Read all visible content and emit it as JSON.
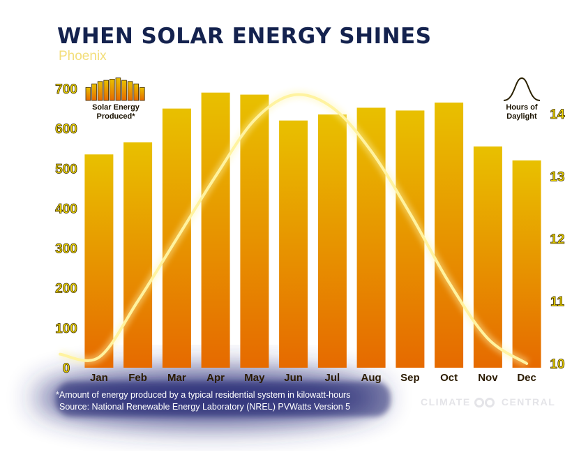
{
  "title": "WHEN SOLAR ENERGY SHINES",
  "subtitle": "Phoenix",
  "legend": {
    "bars": [
      "Solar Energy",
      "Produced*"
    ],
    "line": [
      "Hours of",
      "Daylight"
    ]
  },
  "footnote": {
    "note": "*Amount of energy produced by a typical residential system in kilowatt-hours",
    "source": "Source: National Renewable Energy Laboratory (NREL) PVWatts Version 5"
  },
  "brand": {
    "left": "CLIMATE",
    "right": "CENTRAL"
  },
  "colors": {
    "bar_top": "#e8c000",
    "bar_bottom": "#e66a00",
    "line": "#fff3a0",
    "title": "#14224e",
    "axis_text": "#f0d800"
  },
  "chart_data": {
    "type": "bar",
    "categories": [
      "Jan",
      "Feb",
      "Mar",
      "Apr",
      "May",
      "Jun",
      "Jul",
      "Aug",
      "Sep",
      "Oct",
      "Nov",
      "Dec"
    ],
    "series": [
      {
        "values": [
          535,
          565,
          650,
          690,
          685,
          620,
          635,
          652,
          645,
          665,
          555,
          520
        ],
        "axis": "left"
      },
      {
        "type": "line",
        "values": [
          10.1,
          11.0,
          12.0,
          13.0,
          13.9,
          14.3,
          14.1,
          13.4,
          12.4,
          11.3,
          10.4,
          10.0
        ],
        "axis": "right"
      }
    ],
    "yleft": {
      "ylim": [
        0,
        700
      ],
      "ticks": [
        0,
        100,
        200,
        300,
        400,
        500,
        600,
        700
      ]
    },
    "yright": {
      "ylim": [
        10,
        14
      ],
      "ticks": [
        10,
        11,
        12,
        13,
        14
      ]
    },
    "grid": false,
    "legend_placement": "top-left and top-right corners"
  }
}
